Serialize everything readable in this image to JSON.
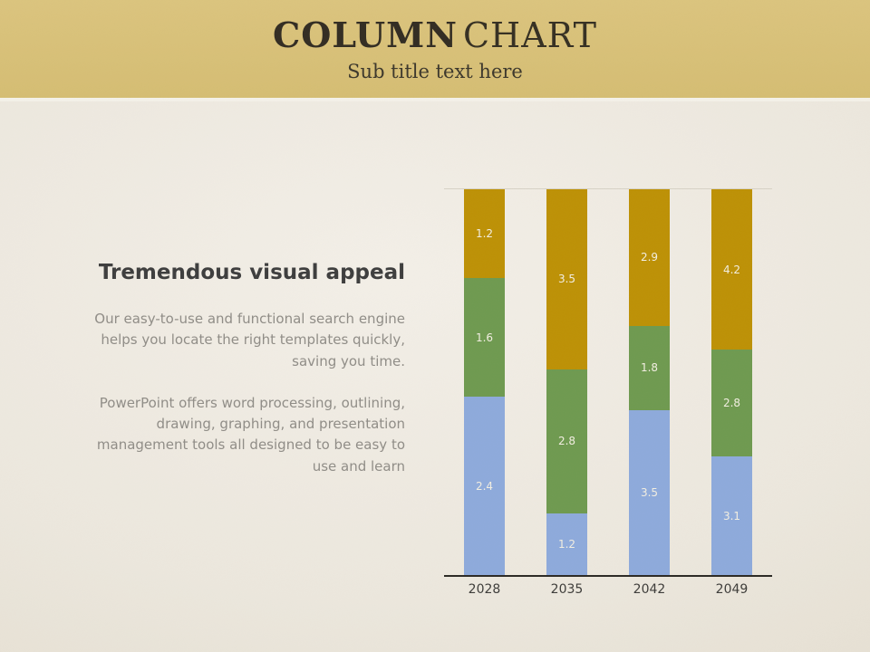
{
  "header": {
    "title_bold": "COLUMN",
    "title_light": "CHART",
    "subtitle": "Sub title text here",
    "band_color": "#d8c077"
  },
  "content": {
    "heading": "Tremendous visual appeal",
    "paragraph1": "Our easy-to-use and functional search engine helps you locate the right templates quickly, saving you time.",
    "paragraph2": "PowerPoint offers word processing, outlining, drawing, graphing, and presentation management tools all designed to be easy to use and learn"
  },
  "chart_data": {
    "type": "bar",
    "subtype": "stacked-100-percent-column",
    "title": "",
    "xlabel": "",
    "ylabel": "",
    "legend": "none",
    "grid": "single top gridline only",
    "value_labels": true,
    "categories": [
      "2028",
      "2035",
      "2042",
      "2049"
    ],
    "series": [
      {
        "name": "blue",
        "color": "#8eaadb",
        "values": [
          2.4,
          1.2,
          3.5,
          3.1
        ]
      },
      {
        "name": "green",
        "color": "#6f9a50",
        "values": [
          1.6,
          2.8,
          1.8,
          2.8
        ]
      },
      {
        "name": "gold",
        "color": "#bd9106",
        "values": [
          1.2,
          3.5,
          2.9,
          4.2
        ]
      }
    ],
    "label_color": "#f2eee1",
    "axis_line_color": "#2c2a25"
  }
}
